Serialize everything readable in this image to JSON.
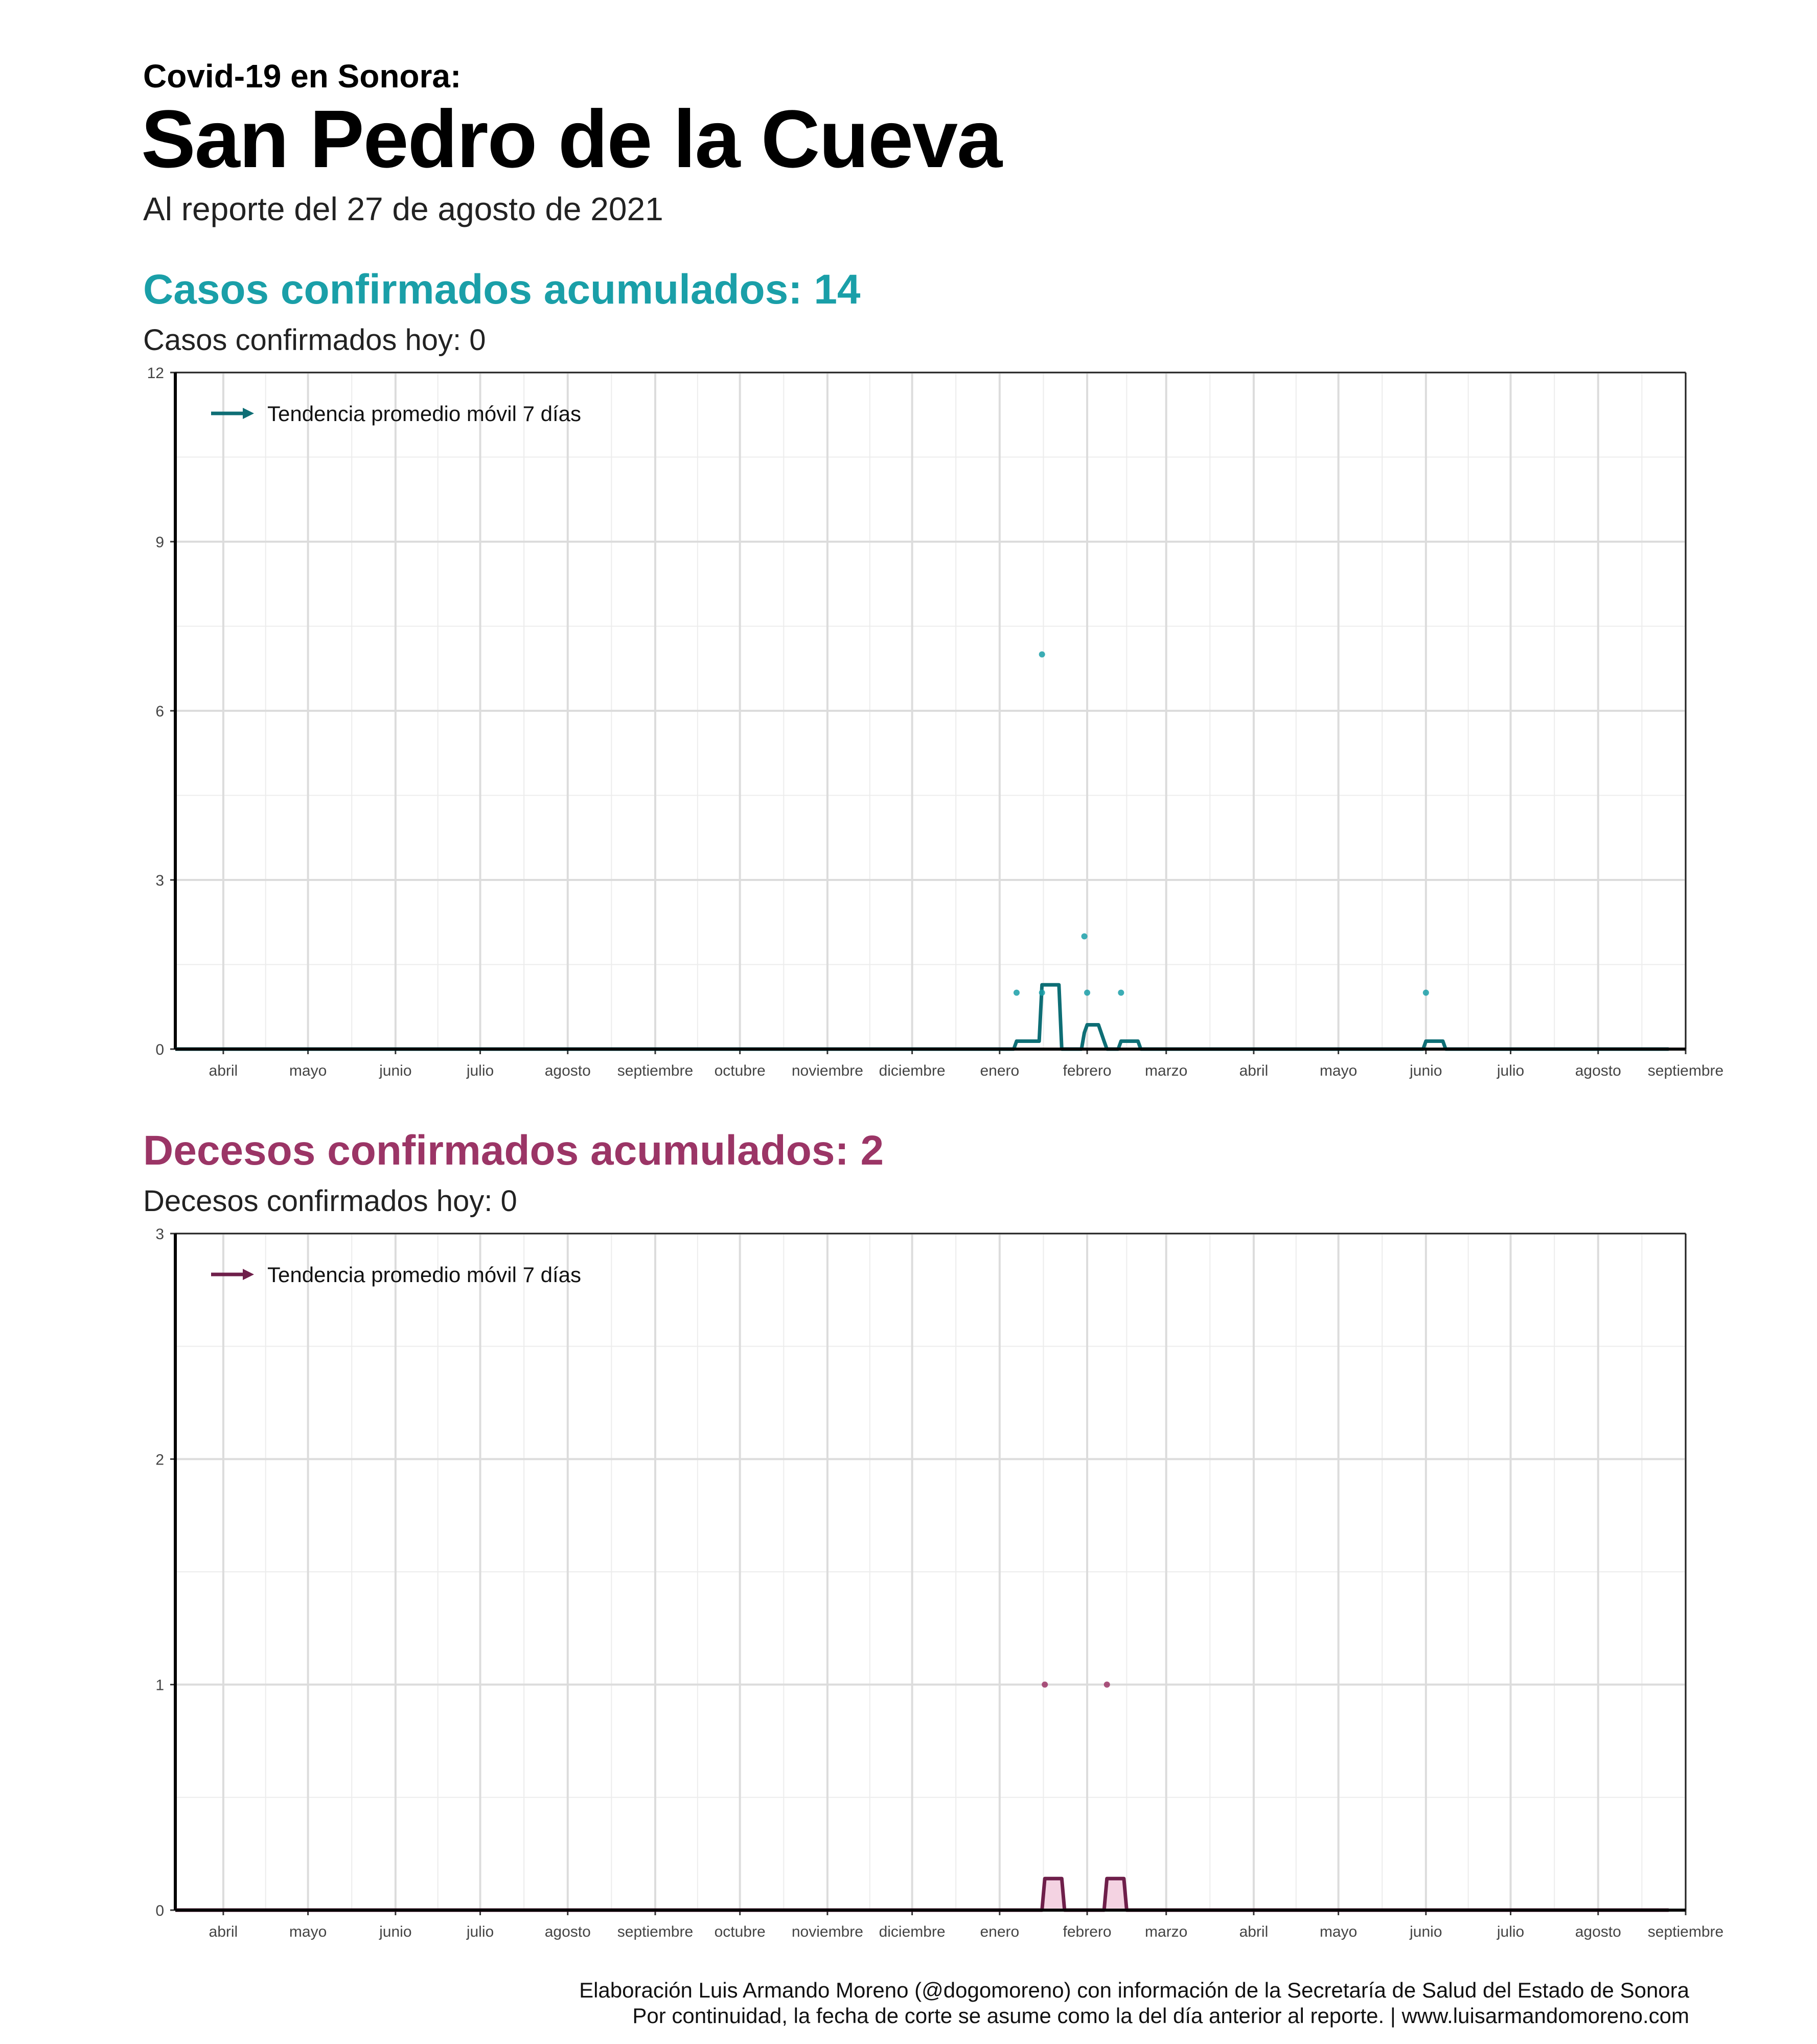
{
  "header": {
    "kicker": "Covid-19 en Sonora:",
    "title": "San Pedro de la Cueva",
    "subtitle": "Al reporte del 27 de agosto de 2021"
  },
  "cases": {
    "title": "Casos confirmados acumulados: 14",
    "today": "Casos confirmados hoy: 0",
    "legend": "Tendencia promedio móvil 7 días",
    "color": "#1a9fa8",
    "line_color": "#0e6e75"
  },
  "deaths": {
    "title": "Decesos confirmados acumulados: 2",
    "today": "Decesos confirmados hoy: 0",
    "legend": "Tendencia promedio móvil 7 días",
    "color": "#9b3566",
    "line_color": "#6e1f4a",
    "fill_color": "#f4d3e2"
  },
  "footer": {
    "line1": "Elaboración Luis Armando Moreno (@dogomoreno) con información de la Secretaría de Salud del Estado de Sonora",
    "line2": "Por continuidad, la fecha de corte se asume como la del día anterior al reporte. | www.luisarmandomoreno.com"
  },
  "chart_data": [
    {
      "type": "line",
      "name": "cases",
      "x_range": [
        "2020-03-15",
        "2021-09-01"
      ],
      "ylim": [
        0,
        12
      ],
      "yticks": [
        0,
        3,
        6,
        9,
        12
      ],
      "xtick_labels": [
        {
          "date": "2020-04-01",
          "label": "abril"
        },
        {
          "date": "2020-05-01",
          "label": "mayo"
        },
        {
          "date": "2020-06-01",
          "label": "junio"
        },
        {
          "date": "2020-07-01",
          "label": "julio"
        },
        {
          "date": "2020-08-01",
          "label": "agosto"
        },
        {
          "date": "2020-09-01",
          "label": "septiembre"
        },
        {
          "date": "2020-10-01",
          "label": "octubre"
        },
        {
          "date": "2020-11-01",
          "label": "noviembre"
        },
        {
          "date": "2020-12-01",
          "label": "diciembre"
        },
        {
          "date": "2021-01-01",
          "label": "enero"
        },
        {
          "date": "2021-02-01",
          "label": "febrero"
        },
        {
          "date": "2021-03-01",
          "label": "marzo"
        },
        {
          "date": "2021-04-01",
          "label": "abril"
        },
        {
          "date": "2021-05-01",
          "label": "mayo"
        },
        {
          "date": "2021-06-01",
          "label": "junio"
        },
        {
          "date": "2021-07-01",
          "label": "julio"
        },
        {
          "date": "2021-08-01",
          "label": "agosto"
        },
        {
          "date": "2021-09-01",
          "label": "septiembre"
        }
      ],
      "points": [
        {
          "x": "2021-01-07",
          "y": 1
        },
        {
          "x": "2021-01-16",
          "y": 7
        },
        {
          "x": "2021-01-16",
          "y": 1
        },
        {
          "x": "2021-01-31",
          "y": 2
        },
        {
          "x": "2021-02-01",
          "y": 1
        },
        {
          "x": "2021-02-13",
          "y": 1
        },
        {
          "x": "2021-06-01",
          "y": 1
        }
      ],
      "trend": [
        {
          "x": "2020-03-15",
          "y": 0
        },
        {
          "x": "2021-01-06",
          "y": 0
        },
        {
          "x": "2021-01-07",
          "y": 0.14
        },
        {
          "x": "2021-01-15",
          "y": 0.14
        },
        {
          "x": "2021-01-16",
          "y": 1.14
        },
        {
          "x": "2021-01-22",
          "y": 1.14
        },
        {
          "x": "2021-01-23",
          "y": 0
        },
        {
          "x": "2021-01-30",
          "y": 0
        },
        {
          "x": "2021-01-31",
          "y": 0.29
        },
        {
          "x": "2021-02-01",
          "y": 0.43
        },
        {
          "x": "2021-02-05",
          "y": 0.43
        },
        {
          "x": "2021-02-07",
          "y": 0.14
        },
        {
          "x": "2021-02-08",
          "y": 0
        },
        {
          "x": "2021-02-12",
          "y": 0
        },
        {
          "x": "2021-02-13",
          "y": 0.14
        },
        {
          "x": "2021-02-19",
          "y": 0.14
        },
        {
          "x": "2021-02-20",
          "y": 0
        },
        {
          "x": "2021-05-31",
          "y": 0
        },
        {
          "x": "2021-06-01",
          "y": 0.14
        },
        {
          "x": "2021-06-07",
          "y": 0.14
        },
        {
          "x": "2021-06-08",
          "y": 0
        },
        {
          "x": "2021-08-26",
          "y": 0
        }
      ]
    },
    {
      "type": "area",
      "name": "deaths",
      "x_range": [
        "2020-03-15",
        "2021-09-01"
      ],
      "ylim": [
        0,
        3
      ],
      "yticks": [
        0,
        1,
        2,
        3
      ],
      "xtick_labels": [
        {
          "date": "2020-04-01",
          "label": "abril"
        },
        {
          "date": "2020-05-01",
          "label": "mayo"
        },
        {
          "date": "2020-06-01",
          "label": "junio"
        },
        {
          "date": "2020-07-01",
          "label": "julio"
        },
        {
          "date": "2020-08-01",
          "label": "agosto"
        },
        {
          "date": "2020-09-01",
          "label": "septiembre"
        },
        {
          "date": "2020-10-01",
          "label": "octubre"
        },
        {
          "date": "2020-11-01",
          "label": "noviembre"
        },
        {
          "date": "2020-12-01",
          "label": "diciembre"
        },
        {
          "date": "2021-01-01",
          "label": "enero"
        },
        {
          "date": "2021-02-01",
          "label": "febrero"
        },
        {
          "date": "2021-03-01",
          "label": "marzo"
        },
        {
          "date": "2021-04-01",
          "label": "abril"
        },
        {
          "date": "2021-05-01",
          "label": "mayo"
        },
        {
          "date": "2021-06-01",
          "label": "junio"
        },
        {
          "date": "2021-07-01",
          "label": "julio"
        },
        {
          "date": "2021-08-01",
          "label": "agosto"
        },
        {
          "date": "2021-09-01",
          "label": "septiembre"
        }
      ],
      "points": [
        {
          "x": "2021-01-17",
          "y": 1
        },
        {
          "x": "2021-02-08",
          "y": 1
        }
      ],
      "trend": [
        {
          "x": "2020-03-15",
          "y": 0
        },
        {
          "x": "2021-01-16",
          "y": 0
        },
        {
          "x": "2021-01-17",
          "y": 0.14
        },
        {
          "x": "2021-01-23",
          "y": 0.14
        },
        {
          "x": "2021-01-24",
          "y": 0
        },
        {
          "x": "2021-02-07",
          "y": 0
        },
        {
          "x": "2021-02-08",
          "y": 0.14
        },
        {
          "x": "2021-02-14",
          "y": 0.14
        },
        {
          "x": "2021-02-15",
          "y": 0
        },
        {
          "x": "2021-08-26",
          "y": 0
        }
      ]
    }
  ]
}
